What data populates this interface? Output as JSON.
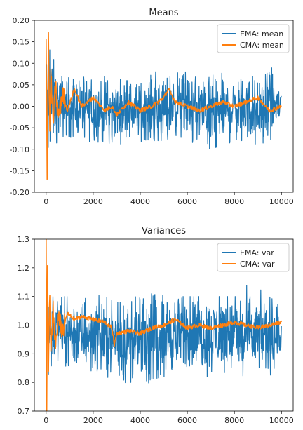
{
  "chart_data": [
    {
      "type": "line",
      "title": "Means",
      "xlabel": "",
      "ylabel": "",
      "xlim": [
        -500,
        10500
      ],
      "ylim": [
        -0.2,
        0.2
      ],
      "xticks": [
        0,
        2000,
        4000,
        6000,
        8000,
        10000
      ],
      "xtick_labels": [
        "0",
        "2000",
        "4000",
        "6000",
        "8000",
        "10000"
      ],
      "yticks": [
        -0.2,
        -0.15,
        -0.1,
        -0.05,
        0.0,
        0.05,
        0.1,
        0.15,
        0.2
      ],
      "ytick_labels": [
        "-0.20",
        "-0.15",
        "-0.10",
        "-0.05",
        "0.00",
        "0.05",
        "0.10",
        "0.15",
        "0.20"
      ],
      "grid": false,
      "legend_position": "top-right",
      "series": [
        {
          "name": "EMA: mean",
          "color": "#1f77b4",
          "x": [
            0,
            250,
            500,
            1000,
            1500,
            2000,
            2500,
            3000,
            3500,
            4000,
            4500,
            5000,
            5500,
            6000,
            6500,
            7000,
            7500,
            8000,
            8500,
            9000,
            9500,
            10000
          ],
          "band_upper": [
            0.15,
            0.12,
            0.08,
            0.07,
            0.07,
            0.06,
            0.06,
            0.06,
            0.06,
            0.06,
            0.07,
            0.07,
            0.08,
            0.08,
            0.07,
            0.07,
            0.07,
            0.07,
            0.07,
            0.07,
            0.08,
            0.06
          ],
          "band_lower": [
            -0.19,
            -0.1,
            -0.08,
            -0.07,
            -0.07,
            -0.08,
            -0.09,
            -0.08,
            -0.07,
            -0.08,
            -0.08,
            -0.08,
            -0.07,
            -0.08,
            -0.09,
            -0.1,
            -0.09,
            -0.08,
            -0.08,
            -0.09,
            -0.08,
            -0.05
          ]
        },
        {
          "name": "CMA: mean",
          "color": "#ff7f0e",
          "x": [
            0,
            50,
            100,
            150,
            200,
            300,
            400,
            500,
            700,
            900,
            1200,
            1500,
            2000,
            2500,
            2800,
            3000,
            3500,
            4000,
            4500,
            5000,
            5200,
            5500,
            6000,
            6500,
            7000,
            7500,
            8000,
            8500,
            9000,
            9500,
            10000
          ],
          "values": [
            0.17,
            -0.2,
            0.17,
            -0.06,
            0.08,
            -0.04,
            0.05,
            -0.03,
            0.03,
            -0.01,
            0.04,
            0.0,
            0.02,
            -0.01,
            0.0,
            -0.02,
            0.01,
            -0.01,
            0.0,
            0.02,
            0.04,
            0.01,
            0.0,
            -0.01,
            0.0,
            0.01,
            0.0,
            0.01,
            0.02,
            -0.01,
            0.0
          ]
        }
      ]
    },
    {
      "type": "line",
      "title": "Variances",
      "xlabel": "",
      "ylabel": "",
      "xlim": [
        -500,
        10500
      ],
      "ylim": [
        0.7,
        1.3
      ],
      "xticks": [
        0,
        2000,
        4000,
        6000,
        8000,
        10000
      ],
      "xtick_labels": [
        "0",
        "2000",
        "4000",
        "6000",
        "8000",
        "10000"
      ],
      "yticks": [
        0.7,
        0.8,
        0.9,
        1.0,
        1.1,
        1.2,
        1.3
      ],
      "ytick_labels": [
        "0.7",
        "0.8",
        "0.9",
        "1.0",
        "1.1",
        "1.2",
        "1.3"
      ],
      "grid": false,
      "legend_position": "top-right",
      "series": [
        {
          "name": "EMA: var",
          "color": "#1f77b4",
          "x": [
            0,
            250,
            500,
            1000,
            1500,
            2000,
            2500,
            3000,
            3500,
            4000,
            4500,
            5000,
            5500,
            6000,
            6500,
            7000,
            7500,
            8000,
            8500,
            9000,
            9500,
            10000
          ],
          "band_upper": [
            1.14,
            1.1,
            1.1,
            1.1,
            1.09,
            1.1,
            1.09,
            1.08,
            1.08,
            1.09,
            1.1,
            1.12,
            1.1,
            1.1,
            1.1,
            1.1,
            1.1,
            1.1,
            1.1,
            1.1,
            1.1,
            1.06
          ],
          "band_lower": [
            0.84,
            0.86,
            0.87,
            0.85,
            0.84,
            0.84,
            0.85,
            0.82,
            0.8,
            0.8,
            0.81,
            0.82,
            0.83,
            0.84,
            0.83,
            0.83,
            0.84,
            0.83,
            0.82,
            0.83,
            0.83,
            0.88
          ]
        },
        {
          "name": "CMA: var",
          "color": "#ff7f0e",
          "x": [
            0,
            30,
            60,
            100,
            150,
            200,
            300,
            400,
            500,
            700,
            900,
            1200,
            1500,
            2000,
            2500,
            2800,
            2900,
            3000,
            3500,
            4000,
            4500,
            5000,
            5500,
            6000,
            6500,
            7000,
            7500,
            8000,
            8500,
            9000,
            9500,
            10000
          ],
          "values": [
            1.3,
            0.7,
            1.25,
            0.85,
            1.1,
            0.9,
            1.05,
            0.92,
            1.03,
            0.98,
            1.04,
            1.02,
            1.03,
            1.02,
            1.01,
            0.99,
            0.93,
            0.97,
            0.98,
            0.97,
            0.99,
            1.0,
            1.02,
            0.99,
            1.0,
            0.99,
            1.0,
            1.01,
            1.0,
            0.99,
            1.0,
            1.01
          ]
        }
      ]
    }
  ]
}
